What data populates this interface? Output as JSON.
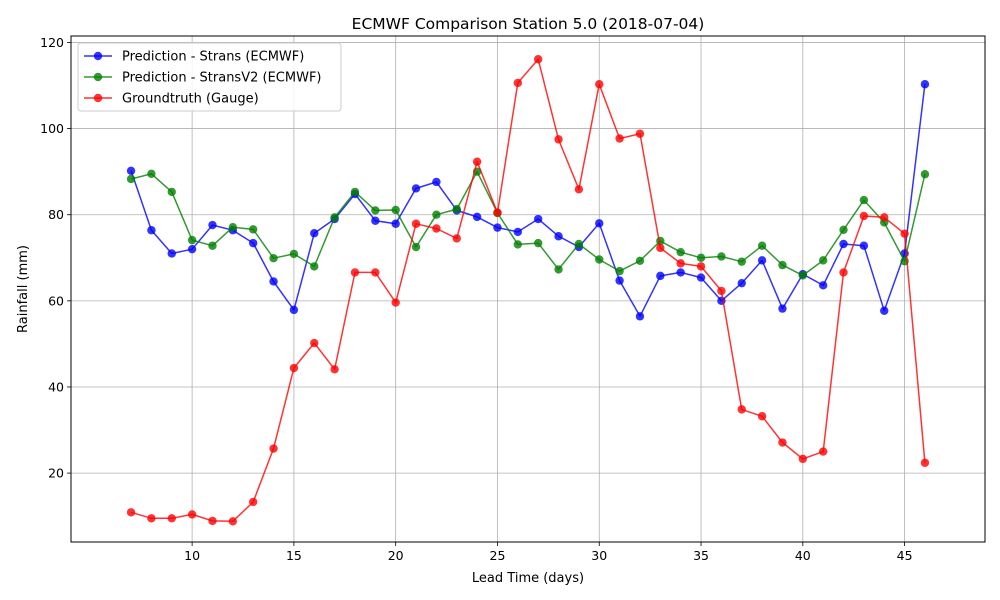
{
  "chart_data": {
    "type": "line",
    "title": "ECMWF Comparison Station 5.0 (2018-07-04)",
    "xlabel": "Lead Time (days)",
    "ylabel": "Rainfall (mm)",
    "xlim": [
      4.05,
      48.95
    ],
    "ylim": [
      4.0,
      121.5
    ],
    "xticks": [
      10,
      15,
      20,
      25,
      30,
      35,
      40,
      45
    ],
    "yticks": [
      20,
      40,
      60,
      80,
      100,
      120
    ],
    "grid": true,
    "legend_position": "top-left",
    "x": [
      7,
      8,
      9,
      10,
      11,
      12,
      13,
      14,
      15,
      16,
      17,
      18,
      19,
      20,
      21,
      22,
      23,
      24,
      25,
      26,
      27,
      28,
      29,
      30,
      31,
      32,
      33,
      34,
      35,
      36,
      37,
      38,
      39,
      40,
      41,
      42,
      43,
      44,
      45,
      46
    ],
    "series": [
      {
        "name": "Prediction - Strans (ECMWF)",
        "color": "#0000ff",
        "values": [
          90.2,
          76.4,
          71.0,
          72.0,
          77.6,
          76.4,
          73.4,
          64.5,
          57.9,
          75.7,
          79.0,
          84.8,
          78.6,
          77.9,
          86.1,
          87.6,
          81.0,
          79.5,
          77.0,
          76.0,
          79.0,
          75.0,
          72.5,
          78.0,
          64.7,
          56.4,
          65.8,
          66.6,
          65.4,
          60.0,
          64.1,
          69.4,
          58.2,
          66.2,
          63.6,
          73.2,
          72.8,
          57.7,
          71.0,
          110.3
        ]
      },
      {
        "name": "Prediction - StransV2 (ECMWF)",
        "color": "#008000",
        "values": [
          88.3,
          89.5,
          85.3,
          74.1,
          72.8,
          77.1,
          76.6,
          69.9,
          70.9,
          68.0,
          79.4,
          85.3,
          81.0,
          81.1,
          72.5,
          80.0,
          81.3,
          90.0,
          80.4,
          73.1,
          73.4,
          67.3,
          73.2,
          69.6,
          66.9,
          69.3,
          73.9,
          71.3,
          70.0,
          70.3,
          69.1,
          72.8,
          68.3,
          65.9,
          69.4,
          76.5,
          83.4,
          78.2,
          69.2,
          89.4
        ]
      },
      {
        "name": "Groundtruth (Gauge)",
        "color": "#ff0000",
        "values": [
          10.9,
          9.5,
          9.5,
          10.4,
          8.9,
          8.8,
          13.3,
          25.7,
          44.4,
          50.2,
          44.1,
          66.6,
          66.6,
          59.6,
          77.9,
          76.8,
          74.5,
          92.3,
          80.5,
          110.6,
          116.1,
          97.5,
          85.9,
          110.3,
          97.7,
          98.8,
          72.3,
          68.7,
          68.0,
          62.3,
          34.8,
          33.2,
          27.1,
          23.3,
          25.0,
          66.6,
          79.7,
          79.4,
          75.6,
          22.4
        ]
      }
    ]
  }
}
